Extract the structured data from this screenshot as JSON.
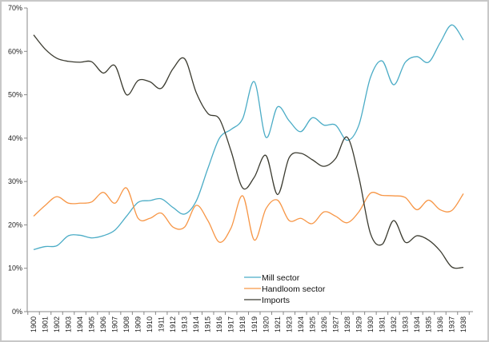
{
  "chart_data": {
    "type": "line",
    "title": "",
    "xlabel": "",
    "ylabel": "",
    "ylim": [
      0,
      70
    ],
    "y_ticks": [
      "0%",
      "10%",
      "20%",
      "30%",
      "40%",
      "50%",
      "60%",
      "70%"
    ],
    "grid": false,
    "legend_position": "bottom-center",
    "categories": [
      "1900",
      "1901",
      "1902",
      "1903",
      "1904",
      "1905",
      "1906",
      "1907",
      "1908",
      "1909",
      "1910",
      "1911",
      "1912",
      "1913",
      "1914",
      "1915",
      "1916",
      "1917",
      "1918",
      "1919",
      "1920",
      "1921",
      "1923",
      "1924",
      "1925",
      "1926",
      "1927",
      "1928",
      "1929",
      "1930",
      "1931",
      "1932",
      "1933",
      "1934",
      "1935",
      "1936",
      "1937",
      "1938"
    ],
    "series": [
      {
        "name": "Mill sector",
        "color": "#4bacc6",
        "values": [
          14.3,
          15,
          15.2,
          17.5,
          17.6,
          17,
          17.5,
          18.8,
          22,
          25.2,
          25.6,
          26,
          24,
          22.5,
          25.5,
          33,
          40,
          42,
          44.5,
          53,
          40.2,
          47.2,
          44,
          41.5,
          44.7,
          43,
          43,
          39.5,
          43,
          54,
          57.8,
          52.3,
          57.5,
          58.8,
          57.5,
          62,
          66.1,
          62.6
        ]
      },
      {
        "name": "Handloom sector",
        "color": "#f79646",
        "values": [
          22,
          24.5,
          26.5,
          25,
          25,
          25.3,
          27.5,
          25,
          28.5,
          21.5,
          21.5,
          22.7,
          19.5,
          19.5,
          24.5,
          21,
          16,
          19.3,
          26.7,
          16.5,
          23.7,
          25.7,
          21,
          21.5,
          20.3,
          23,
          22,
          20.5,
          23,
          27.3,
          26.8,
          26.7,
          26.3,
          23.5,
          25.7,
          23.5,
          23.3,
          27.2
        ]
      },
      {
        "name": "Imports",
        "color": "#3b3b30",
        "values": [
          63.8,
          60.5,
          58.4,
          57.7,
          57.5,
          57.6,
          55,
          56.7,
          50,
          53.3,
          53,
          51.5,
          56,
          58.3,
          50.5,
          45.7,
          44.4,
          37,
          28.5,
          31,
          36,
          27,
          35.5,
          36.5,
          35,
          33.5,
          35.3,
          40.2,
          31,
          18,
          15.5,
          21,
          16,
          17.5,
          16.5,
          14,
          10.3,
          10.2
        ]
      }
    ]
  }
}
